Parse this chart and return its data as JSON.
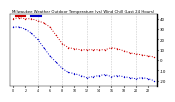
{
  "title": "Milwaukee Weather Outdoor Temperature (vs) Wind Chill (Last 24 Hours)",
  "bg_color": "#ffffff",
  "plot_bg": "#ffffff",
  "grid_color": "#999999",
  "ylim": [
    -25,
    45
  ],
  "yticks": [
    40,
    30,
    20,
    10,
    0,
    -10,
    -20
  ],
  "ytick_labels": [
    "40",
    "30",
    "20",
    "10",
    "0",
    "-10",
    "-20"
  ],
  "temp_color": "#cc0000",
  "wind_color": "#0000cc",
  "temp_data": [
    40,
    41,
    40,
    40,
    38,
    36,
    32,
    24,
    16,
    12,
    11,
    10,
    10,
    10,
    10,
    10,
    12,
    11,
    9,
    7,
    6,
    5,
    4,
    3
  ],
  "wind_data": [
    32,
    32,
    30,
    26,
    20,
    12,
    4,
    -2,
    -8,
    -12,
    -13,
    -15,
    -17,
    -16,
    -15,
    -14,
    -16,
    -15,
    -16,
    -17,
    -18,
    -17,
    -18,
    -20
  ],
  "n_points": 24,
  "x_tick_step": 2,
  "vgrid_positions": [
    4,
    8,
    12,
    16,
    20
  ],
  "right_border_color": "#000000",
  "title_fontsize": 2.8,
  "tick_fontsize": 2.8,
  "xtick_fontsize": 2.3,
  "marker_size": 2.0,
  "linewidth": 0.7
}
